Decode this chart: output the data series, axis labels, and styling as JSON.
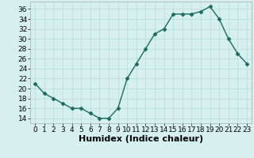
{
  "x": [
    0,
    1,
    2,
    3,
    4,
    5,
    6,
    7,
    8,
    9,
    10,
    11,
    12,
    13,
    14,
    15,
    16,
    17,
    18,
    19,
    20,
    21,
    22,
    23
  ],
  "y": [
    21,
    19,
    18,
    17,
    16,
    16,
    15,
    14,
    14,
    16,
    22,
    25,
    28,
    31,
    32,
    35,
    35,
    35,
    35.5,
    36.5,
    34,
    30,
    27,
    25
  ],
  "line_color": "#1a6b5a",
  "marker": "D",
  "marker_size": 2.5,
  "bg_color": "#d6f0ef",
  "grid_color": "#b8dbd9",
  "xlabel": "Humidex (Indice chaleur)",
  "xlabel_fontsize": 8,
  "ylim": [
    13,
    37.5
  ],
  "yticks": [
    14,
    16,
    18,
    20,
    22,
    24,
    26,
    28,
    30,
    32,
    34,
    36
  ],
  "xlim": [
    -0.5,
    23.5
  ],
  "xticks": [
    0,
    1,
    2,
    3,
    4,
    5,
    6,
    7,
    8,
    9,
    10,
    11,
    12,
    13,
    14,
    15,
    16,
    17,
    18,
    19,
    20,
    21,
    22,
    23
  ],
  "tick_fontsize": 6.5,
  "spine_color": "#aaaaaa",
  "linewidth": 1.0
}
